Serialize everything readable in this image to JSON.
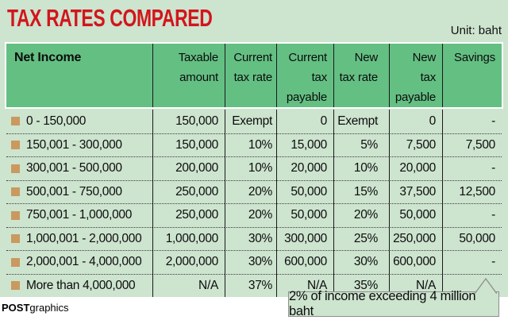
{
  "header": {
    "title": "TAX RATES COMPARED",
    "unit_label": "Unit: baht"
  },
  "credit": {
    "bold": "POST",
    "light": "graphics"
  },
  "callout": {
    "text": "2% of income exceeding 4 million baht"
  },
  "colors": {
    "page_green": "#cde4cf",
    "header_green": "#64bf83",
    "title_red": "#d2151c",
    "bullet_tan": "#c9995f",
    "text_black": "#0c0c0c",
    "callout_border": "#8e8e8e",
    "footer_white": "#ffffff"
  },
  "chart_data": {
    "type": "table",
    "title": "TAX RATES COMPARED",
    "unit": "baht",
    "columns": [
      "Net Income",
      "Taxable amount",
      "Current tax rate",
      "Current tax payable",
      "New tax rate",
      "New tax payable",
      "Savings"
    ],
    "header_lines": [
      [
        "Net Income"
      ],
      [
        "Taxable",
        "amount"
      ],
      [
        "Current",
        "tax rate"
      ],
      [
        "Current",
        "tax",
        "payable"
      ],
      [
        "New",
        "tax rate"
      ],
      [
        "New",
        "tax",
        "payable"
      ],
      [
        "Savings"
      ]
    ],
    "rows": [
      [
        "0 - 150,000",
        "150,000",
        "Exempt",
        "0",
        "Exempt",
        "0",
        "-"
      ],
      [
        "150,001 - 300,000",
        "150,000",
        "10%",
        "15,000",
        "5%",
        "7,500",
        "7,500"
      ],
      [
        "300,001 - 500,000",
        "200,000",
        "10%",
        "20,000",
        "10%",
        "20,000",
        "-"
      ],
      [
        "500,001 - 750,000",
        "250,000",
        "20%",
        "50,000",
        "15%",
        "37,500",
        "12,500"
      ],
      [
        "750,001 - 1,000,000",
        "250,000",
        "20%",
        "50,000",
        "20%",
        "50,000",
        "-"
      ],
      [
        "1,000,001 - 2,000,000",
        "1,000,000",
        "30%",
        "300,000",
        "25%",
        "250,000",
        "50,000"
      ],
      [
        "2,000,001 - 4,000,000",
        "2,000,000",
        "30%",
        "600,000",
        "30%",
        "600,000",
        "-"
      ],
      [
        "More than 4,000,000",
        "N/A",
        "37%",
        "N/A",
        "35%",
        "N/A",
        ""
      ]
    ],
    "footnote": "2% of income exceeding 4 million baht",
    "source_credit": "POSTgraphics"
  }
}
